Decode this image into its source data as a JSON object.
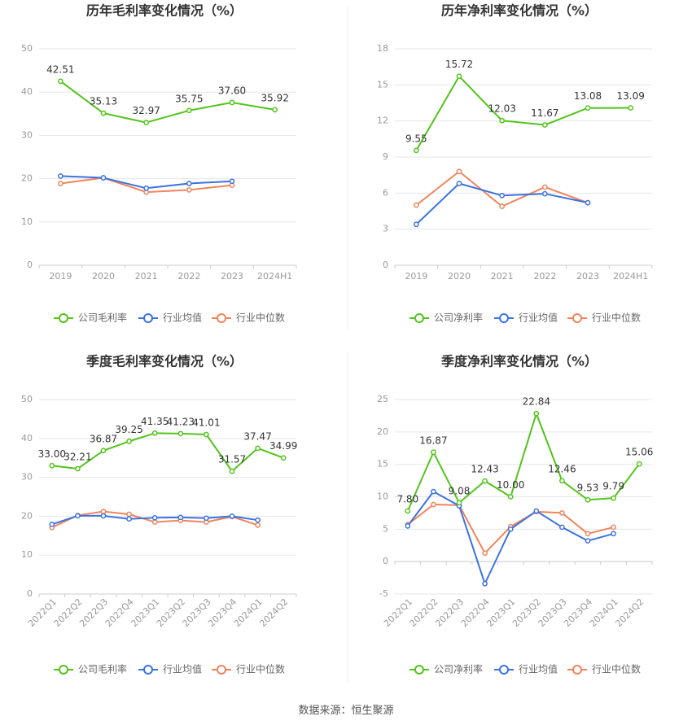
{
  "chart_data": [
    {
      "type": "line",
      "title": "历年毛利率变化情况（%）",
      "categories": [
        "2019",
        "2020",
        "2021",
        "2022",
        "2023",
        "2024H1"
      ],
      "ylim": [
        0,
        50
      ],
      "yticks": [
        0,
        10,
        20,
        30,
        40,
        50
      ],
      "rotate_x_labels": false,
      "legend_position": "bottom",
      "grid": true,
      "series": [
        {
          "name": "公司毛利率",
          "color": "#52c41a",
          "labels": true,
          "values": [
            42.51,
            35.13,
            32.97,
            35.75,
            37.6,
            35.92
          ],
          "value_labels": [
            "42.51",
            "35.13",
            "32.97",
            "35.75",
            "37.60",
            "35.92"
          ]
        },
        {
          "name": "行业均值",
          "color": "#3b73e0",
          "labels": false,
          "values": [
            20.6,
            20.2,
            17.8,
            18.9,
            19.4,
            null
          ]
        },
        {
          "name": "行业中位数",
          "color": "#f0845c",
          "labels": false,
          "values": [
            18.9,
            20.2,
            16.9,
            17.4,
            18.5,
            null
          ]
        }
      ]
    },
    {
      "type": "line",
      "title": "历年净利率变化情况（%）",
      "categories": [
        "2019",
        "2020",
        "2021",
        "2022",
        "2023",
        "2024H1"
      ],
      "ylim": [
        0,
        18
      ],
      "yticks": [
        0,
        3,
        6,
        9,
        12,
        15,
        18
      ],
      "rotate_x_labels": false,
      "legend_position": "bottom",
      "grid": true,
      "series": [
        {
          "name": "公司净利率",
          "color": "#52c41a",
          "labels": true,
          "values": [
            9.55,
            15.72,
            12.03,
            11.67,
            13.08,
            13.09
          ],
          "value_labels": [
            "9.55",
            "15.72",
            "12.03",
            "11.67",
            "13.08",
            "13.09"
          ]
        },
        {
          "name": "行业均值",
          "color": "#3b73e0",
          "labels": false,
          "values": [
            3.4,
            6.8,
            5.8,
            5.95,
            5.2,
            null
          ]
        },
        {
          "name": "行业中位数",
          "color": "#f0845c",
          "labels": false,
          "values": [
            5.0,
            7.8,
            4.9,
            6.5,
            5.2,
            null
          ]
        }
      ]
    },
    {
      "type": "line",
      "title": "季度毛利率变化情况（%）",
      "categories": [
        "2022Q1",
        "2022Q2",
        "2022Q3",
        "2022Q4",
        "2023Q1",
        "2023Q2",
        "2023Q3",
        "2023Q4",
        "2024Q1",
        "2024Q2"
      ],
      "ylim": [
        0,
        50
      ],
      "yticks": [
        0,
        10,
        20,
        30,
        40,
        50
      ],
      "rotate_x_labels": true,
      "legend_position": "bottom",
      "grid": true,
      "series": [
        {
          "name": "公司毛利率",
          "color": "#52c41a",
          "labels": true,
          "values": [
            33.0,
            32.21,
            36.87,
            39.25,
            41.35,
            41.23,
            41.01,
            31.57,
            37.47,
            34.99
          ],
          "value_labels": [
            "33.00",
            "32.21",
            "36.87",
            "39.25",
            "41.35",
            "41.23",
            "41.01",
            "31.57",
            "37.47",
            "34.99"
          ]
        },
        {
          "name": "行业均值",
          "color": "#3b73e0",
          "labels": false,
          "values": [
            17.9,
            20.1,
            20.1,
            19.3,
            19.6,
            19.7,
            19.5,
            20.0,
            19.0,
            null
          ]
        },
        {
          "name": "行业中位数",
          "color": "#f0845c",
          "labels": false,
          "values": [
            17.1,
            20.2,
            21.2,
            20.5,
            18.5,
            18.9,
            18.5,
            19.9,
            17.7,
            null
          ]
        }
      ]
    },
    {
      "type": "line",
      "title": "季度净利率变化情况（%）",
      "categories": [
        "2022Q1",
        "2022Q2",
        "2022Q3",
        "2022Q4",
        "2023Q1",
        "2023Q2",
        "2023Q3",
        "2023Q4",
        "2024Q1",
        "2024Q2"
      ],
      "ylim": [
        -5,
        25
      ],
      "yticks": [
        -5,
        0,
        5,
        10,
        15,
        20,
        25
      ],
      "rotate_x_labels": true,
      "legend_position": "bottom",
      "grid": true,
      "series": [
        {
          "name": "公司净利率",
          "color": "#52c41a",
          "labels": true,
          "values": [
            7.8,
            16.87,
            9.08,
            12.43,
            10.0,
            22.84,
            12.46,
            9.53,
            9.79,
            15.06
          ],
          "value_labels": [
            "7.80",
            "16.87",
            "9.08",
            "12.43",
            "10.00",
            "22.84",
            "12.46",
            "9.53",
            "9.79",
            "15.06"
          ]
        },
        {
          "name": "行业均值",
          "color": "#3b73e0",
          "labels": false,
          "values": [
            5.5,
            10.8,
            8.6,
            -3.4,
            5.0,
            7.8,
            5.3,
            3.2,
            4.3,
            null
          ]
        },
        {
          "name": "行业中位数",
          "color": "#f0845c",
          "labels": false,
          "values": [
            5.7,
            8.8,
            8.7,
            1.3,
            5.4,
            7.7,
            7.5,
            4.3,
            5.3,
            null
          ]
        }
      ]
    }
  ],
  "source": "数据来源：恒生聚源"
}
